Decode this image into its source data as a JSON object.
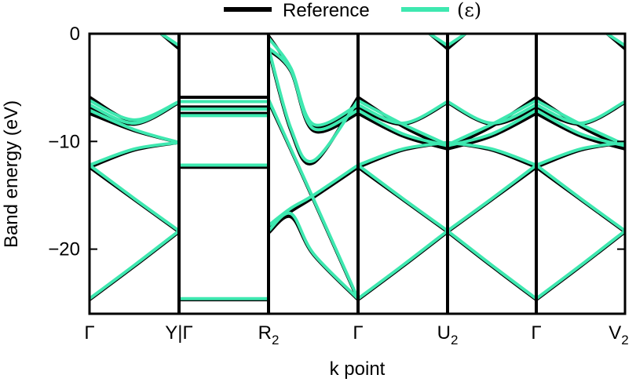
{
  "chart_data": {
    "type": "line",
    "xlabel": "k point",
    "ylabel": "Band energy (eV)",
    "ylim": [
      -26,
      0
    ],
    "yticks": [
      0,
      -10,
      -20
    ],
    "ytick_labels": [
      "0",
      "−10",
      "−20"
    ],
    "grid": false,
    "legend_position": "top",
    "colors": {
      "Reference": "#000000",
      "(ε)": "#3ee8b0"
    },
    "kpoint_labels": [
      {
        "text": "Γ",
        "sub": "",
        "x": 0
      },
      {
        "text": "Y|Γ",
        "sub": "",
        "x": 1
      },
      {
        "text": "R",
        "sub": "2",
        "x": 2
      },
      {
        "text": "Γ",
        "sub": "",
        "x": 3
      },
      {
        "text": "U",
        "sub": "2",
        "x": 4
      },
      {
        "text": "Γ",
        "sub": "",
        "x": 5
      },
      {
        "text": "V",
        "sub": "2",
        "x": 6
      }
    ],
    "segments": [
      {
        "from": "Γ",
        "to": "Y",
        "bands": [
          {
            "k": [
              0,
              0.5,
              1
            ],
            "ref": [
              -24.7,
              -21.6,
              -18.4
            ],
            "pred": [
              -24.6,
              -21.5,
              -18.3
            ]
          },
          {
            "k": [
              0,
              0.5,
              1
            ],
            "ref": [
              -12.4,
              -15.4,
              -18.4
            ],
            "pred": [
              -12.2,
              -15.3,
              -18.3
            ]
          },
          {
            "k": [
              0,
              0.5,
              1
            ],
            "ref": [
              -12.4,
              -10.8,
              -10.1
            ],
            "pred": [
              -12.2,
              -10.7,
              -10.1
            ]
          },
          {
            "k": [
              0,
              0.5,
              1
            ],
            "ref": [
              -7.4,
              -9.0,
              -10.1
            ],
            "pred": [
              -7.1,
              -8.9,
              -10.1
            ]
          },
          {
            "k": [
              0,
              0.5,
              1
            ],
            "ref": [
              -6.9,
              -8.4,
              -6.4
            ],
            "pred": [
              -6.6,
              -8.3,
              -6.3
            ]
          },
          {
            "k": [
              0,
              0.5,
              1
            ],
            "ref": [
              -5.9,
              -8.1,
              -6.4
            ],
            "pred": [
              -6.2,
              -8.0,
              -6.3
            ]
          },
          {
            "k": [
              0.8,
              1
            ],
            "ref": [
              0,
              -1.4
            ],
            "pred": [
              0,
              -1.1
            ]
          }
        ]
      },
      {
        "from": "Γ",
        "to": "R2",
        "bands": [
          {
            "k": [
              0,
              1
            ],
            "ref": [
              -24.7,
              -24.7
            ],
            "pred": [
              -24.6,
              -24.6
            ]
          },
          {
            "k": [
              0,
              1
            ],
            "ref": [
              -12.4,
              -12.4
            ],
            "pred": [
              -12.2,
              -12.2
            ]
          },
          {
            "k": [
              0,
              1
            ],
            "ref": [
              -7.4,
              -7.4
            ],
            "pred": [
              -7.6,
              -7.6
            ]
          },
          {
            "k": [
              0,
              1
            ],
            "ref": [
              -6.8,
              -6.8
            ],
            "pred": [
              -7.0,
              -7.0
            ]
          },
          {
            "k": [
              0,
              1
            ],
            "ref": [
              -5.9,
              -5.9
            ],
            "pred": [
              -6.3,
              -6.3
            ]
          }
        ]
      },
      {
        "from": "R2",
        "to": "Γ",
        "bands": [
          {
            "k": [
              0,
              0.25,
              0.5,
              1
            ],
            "ref": [
              -18.5,
              -17.0,
              -20.5,
              -24.7
            ],
            "pred": [
              -18.3,
              -16.7,
              -20.4,
              -24.6
            ]
          },
          {
            "k": [
              0,
              0.25,
              0.5,
              1
            ],
            "ref": [
              -18.0,
              -16.5,
              -15.2,
              -12.4
            ],
            "pred": [
              -17.8,
              -16.2,
              -15.0,
              -12.2
            ]
          },
          {
            "k": [
              0,
              0.25,
              0.5,
              1
            ],
            "ref": [
              -6.3,
              -10.8,
              -15.4,
              -24.7
            ],
            "pred": [
              -6.1,
              -10.7,
              -15.3,
              -24.6
            ]
          },
          {
            "k": [
              0,
              0.25,
              0.5,
              1
            ],
            "ref": [
              -1.5,
              -3.5,
              -9.0,
              -7.4
            ],
            "pred": [
              -1.3,
              -3.4,
              -8.8,
              -7.1
            ]
          },
          {
            "k": [
              0,
              0.25,
              0.5,
              1
            ],
            "ref": [
              -0.2,
              -3.4,
              -8.6,
              -6.9
            ],
            "pred": [
              -0.4,
              -3.2,
              -8.4,
              -6.6
            ]
          },
          {
            "k": [
              0,
              0.25,
              0.5,
              1
            ],
            "ref": [
              -1.5,
              -9.0,
              -12.0,
              -5.9
            ],
            "pred": [
              -1.3,
              -8.8,
              -11.8,
              -6.2
            ]
          }
        ]
      },
      {
        "from": "Γ",
        "to": "U2",
        "bands": [
          {
            "k": [
              0,
              0.5,
              1
            ],
            "ref": [
              -24.7,
              -21.6,
              -18.4
            ],
            "pred": [
              -24.6,
              -21.5,
              -18.3
            ]
          },
          {
            "k": [
              0,
              0.5,
              1
            ],
            "ref": [
              -12.4,
              -15.4,
              -18.4
            ],
            "pred": [
              -12.2,
              -15.3,
              -18.3
            ]
          },
          {
            "k": [
              0,
              0.5,
              1
            ],
            "ref": [
              -12.4,
              -10.8,
              -10.1
            ],
            "pred": [
              -12.2,
              -10.7,
              -10.1
            ]
          },
          {
            "k": [
              0,
              0.5,
              1
            ],
            "ref": [
              -7.4,
              -9.5,
              -10.7
            ],
            "pred": [
              -7.1,
              -9.3,
              -10.4
            ]
          },
          {
            "k": [
              0,
              0.5,
              1
            ],
            "ref": [
              -6.9,
              -8.4,
              -6.4
            ],
            "pred": [
              -6.6,
              -8.3,
              -6.3
            ]
          },
          {
            "k": [
              0,
              0.5,
              1
            ],
            "ref": [
              -5.9,
              -8.6,
              -10.6
            ],
            "pred": [
              -6.2,
              -8.4,
              -10.3
            ]
          },
          {
            "k": [
              0.8,
              1
            ],
            "ref": [
              0,
              -1.4
            ],
            "pred": [
              0,
              -1.1
            ]
          }
        ]
      },
      {
        "from": "U2",
        "to": "Γ",
        "bands": [
          {
            "k": [
              0,
              0.5,
              1
            ],
            "ref": [
              -18.4,
              -21.6,
              -24.7
            ],
            "pred": [
              -18.3,
              -21.5,
              -24.6
            ]
          },
          {
            "k": [
              0,
              0.5,
              1
            ],
            "ref": [
              -18.4,
              -15.4,
              -12.4
            ],
            "pred": [
              -18.3,
              -15.3,
              -12.2
            ]
          },
          {
            "k": [
              0,
              0.5,
              1
            ],
            "ref": [
              -10.1,
              -10.8,
              -12.4
            ],
            "pred": [
              -10.1,
              -10.7,
              -12.2
            ]
          },
          {
            "k": [
              0,
              0.5,
              1
            ],
            "ref": [
              -10.7,
              -9.5,
              -7.4
            ],
            "pred": [
              -10.4,
              -9.3,
              -7.1
            ]
          },
          {
            "k": [
              0,
              0.5,
              1
            ],
            "ref": [
              -6.4,
              -8.4,
              -6.9
            ],
            "pred": [
              -6.3,
              -8.3,
              -6.6
            ]
          },
          {
            "k": [
              0,
              0.5,
              1
            ],
            "ref": [
              -10.6,
              -8.6,
              -5.9
            ],
            "pred": [
              -10.3,
              -8.4,
              -6.2
            ]
          },
          {
            "k": [
              0,
              0.2
            ],
            "ref": [
              -1.4,
              0
            ],
            "pred": [
              -1.1,
              0
            ]
          }
        ]
      },
      {
        "from": "Γ",
        "to": "V2",
        "bands": [
          {
            "k": [
              0,
              0.5,
              1
            ],
            "ref": [
              -24.7,
              -21.6,
              -18.4
            ],
            "pred": [
              -24.6,
              -21.5,
              -18.3
            ]
          },
          {
            "k": [
              0,
              0.5,
              1
            ],
            "ref": [
              -12.4,
              -15.4,
              -18.4
            ],
            "pred": [
              -12.2,
              -15.3,
              -18.3
            ]
          },
          {
            "k": [
              0,
              0.5,
              1
            ],
            "ref": [
              -12.4,
              -10.8,
              -10.1
            ],
            "pred": [
              -12.2,
              -10.7,
              -10.1
            ]
          },
          {
            "k": [
              0,
              0.5,
              1
            ],
            "ref": [
              -7.4,
              -9.5,
              -10.7
            ],
            "pred": [
              -7.1,
              -9.3,
              -10.4
            ]
          },
          {
            "k": [
              0,
              0.5,
              1
            ],
            "ref": [
              -6.9,
              -8.4,
              -6.4
            ],
            "pred": [
              -6.6,
              -8.3,
              -6.3
            ]
          },
          {
            "k": [
              0,
              0.5,
              1
            ],
            "ref": [
              -5.9,
              -8.6,
              -10.6
            ],
            "pred": [
              -6.2,
              -8.4,
              -10.3
            ]
          },
          {
            "k": [
              0.8,
              1
            ],
            "ref": [
              0,
              -1.4
            ],
            "pred": [
              0,
              -1.1
            ]
          }
        ]
      }
    ]
  },
  "legend": {
    "items": [
      {
        "label": "Reference",
        "color": "#000000"
      },
      {
        "label": "(ε)",
        "color": "#3ee8b0"
      }
    ]
  }
}
